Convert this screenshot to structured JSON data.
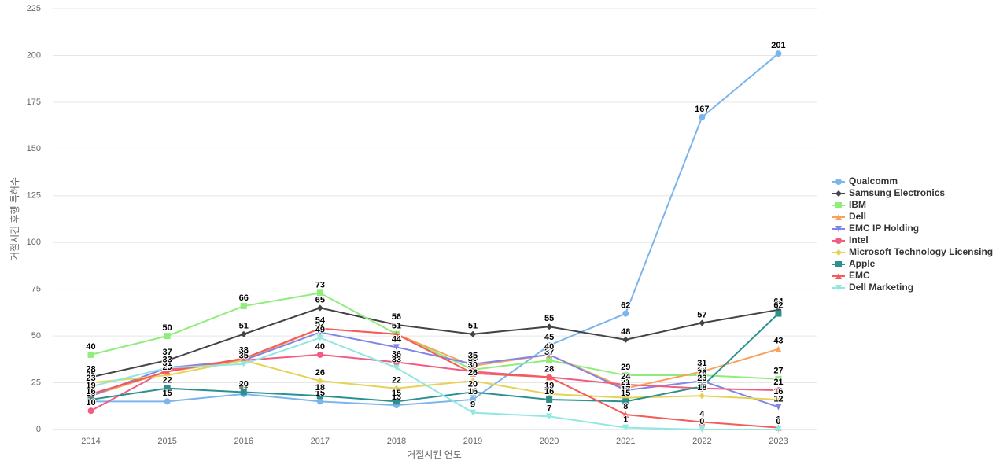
{
  "chart_data": {
    "type": "line",
    "x_label": "거절시킨 연도",
    "y_label": "거절시킨 후행 특허수",
    "categories": [
      "2014",
      "2015",
      "2016",
      "2017",
      "2018",
      "2019",
      "2020",
      "2021",
      "2022",
      "2023"
    ],
    "ylim": [
      0,
      225
    ],
    "yticks": [
      0,
      25,
      50,
      75,
      100,
      125,
      150,
      175,
      200,
      225
    ],
    "grid": true,
    "legend": "right",
    "series": [
      {
        "name": "Qualcomm",
        "color": "#7cb5ec",
        "marker": "circle",
        "values": [
          15,
          15,
          19,
          15,
          13,
          16,
          45,
          62,
          167,
          201
        ]
      },
      {
        "name": "Samsung Electronics",
        "color": "#434348",
        "marker": "diamond",
        "values": [
          28,
          37,
          51,
          65,
          56,
          51,
          55,
          48,
          57,
          64
        ]
      },
      {
        "name": "IBM",
        "color": "#90ed7d",
        "marker": "square",
        "values": [
          40,
          50,
          66,
          73,
          51,
          32,
          37,
          29,
          29,
          27
        ]
      },
      {
        "name": "Dell",
        "color": "#f7a35c",
        "marker": "triangle",
        "values": [
          18,
          31,
          37,
          54,
          51,
          34,
          40,
          22,
          31,
          43
        ]
      },
      {
        "name": "EMC IP Holding",
        "color": "#8085e9",
        "marker": "triangle-down",
        "values": [
          18,
          33,
          37,
          52,
          44,
          35,
          40,
          21,
          26,
          12
        ]
      },
      {
        "name": "Intel",
        "color": "#f15c80",
        "marker": "circle",
        "values": [
          10,
          32,
          37,
          40,
          36,
          31,
          28,
          24,
          22,
          21
        ]
      },
      {
        "name": "Microsoft Technology Licensing",
        "color": "#e4d354",
        "marker": "diamond",
        "values": [
          25,
          29,
          37,
          26,
          22,
          26,
          19,
          17,
          18,
          16
        ]
      },
      {
        "name": "Apple",
        "color": "#2b908f",
        "marker": "square",
        "values": [
          16,
          22,
          20,
          18,
          15,
          20,
          16,
          15,
          23,
          62
        ]
      },
      {
        "name": "EMC",
        "color": "#f45b5b",
        "marker": "triangle",
        "values": [
          19,
          31,
          38,
          54,
          51,
          30,
          28,
          8,
          4,
          1
        ]
      },
      {
        "name": "Dell Marketing",
        "color": "#91e8e1",
        "marker": "triangle-down",
        "values": [
          23,
          33,
          35,
          49,
          33,
          9,
          7,
          1,
          0,
          0
        ]
      }
    ]
  }
}
